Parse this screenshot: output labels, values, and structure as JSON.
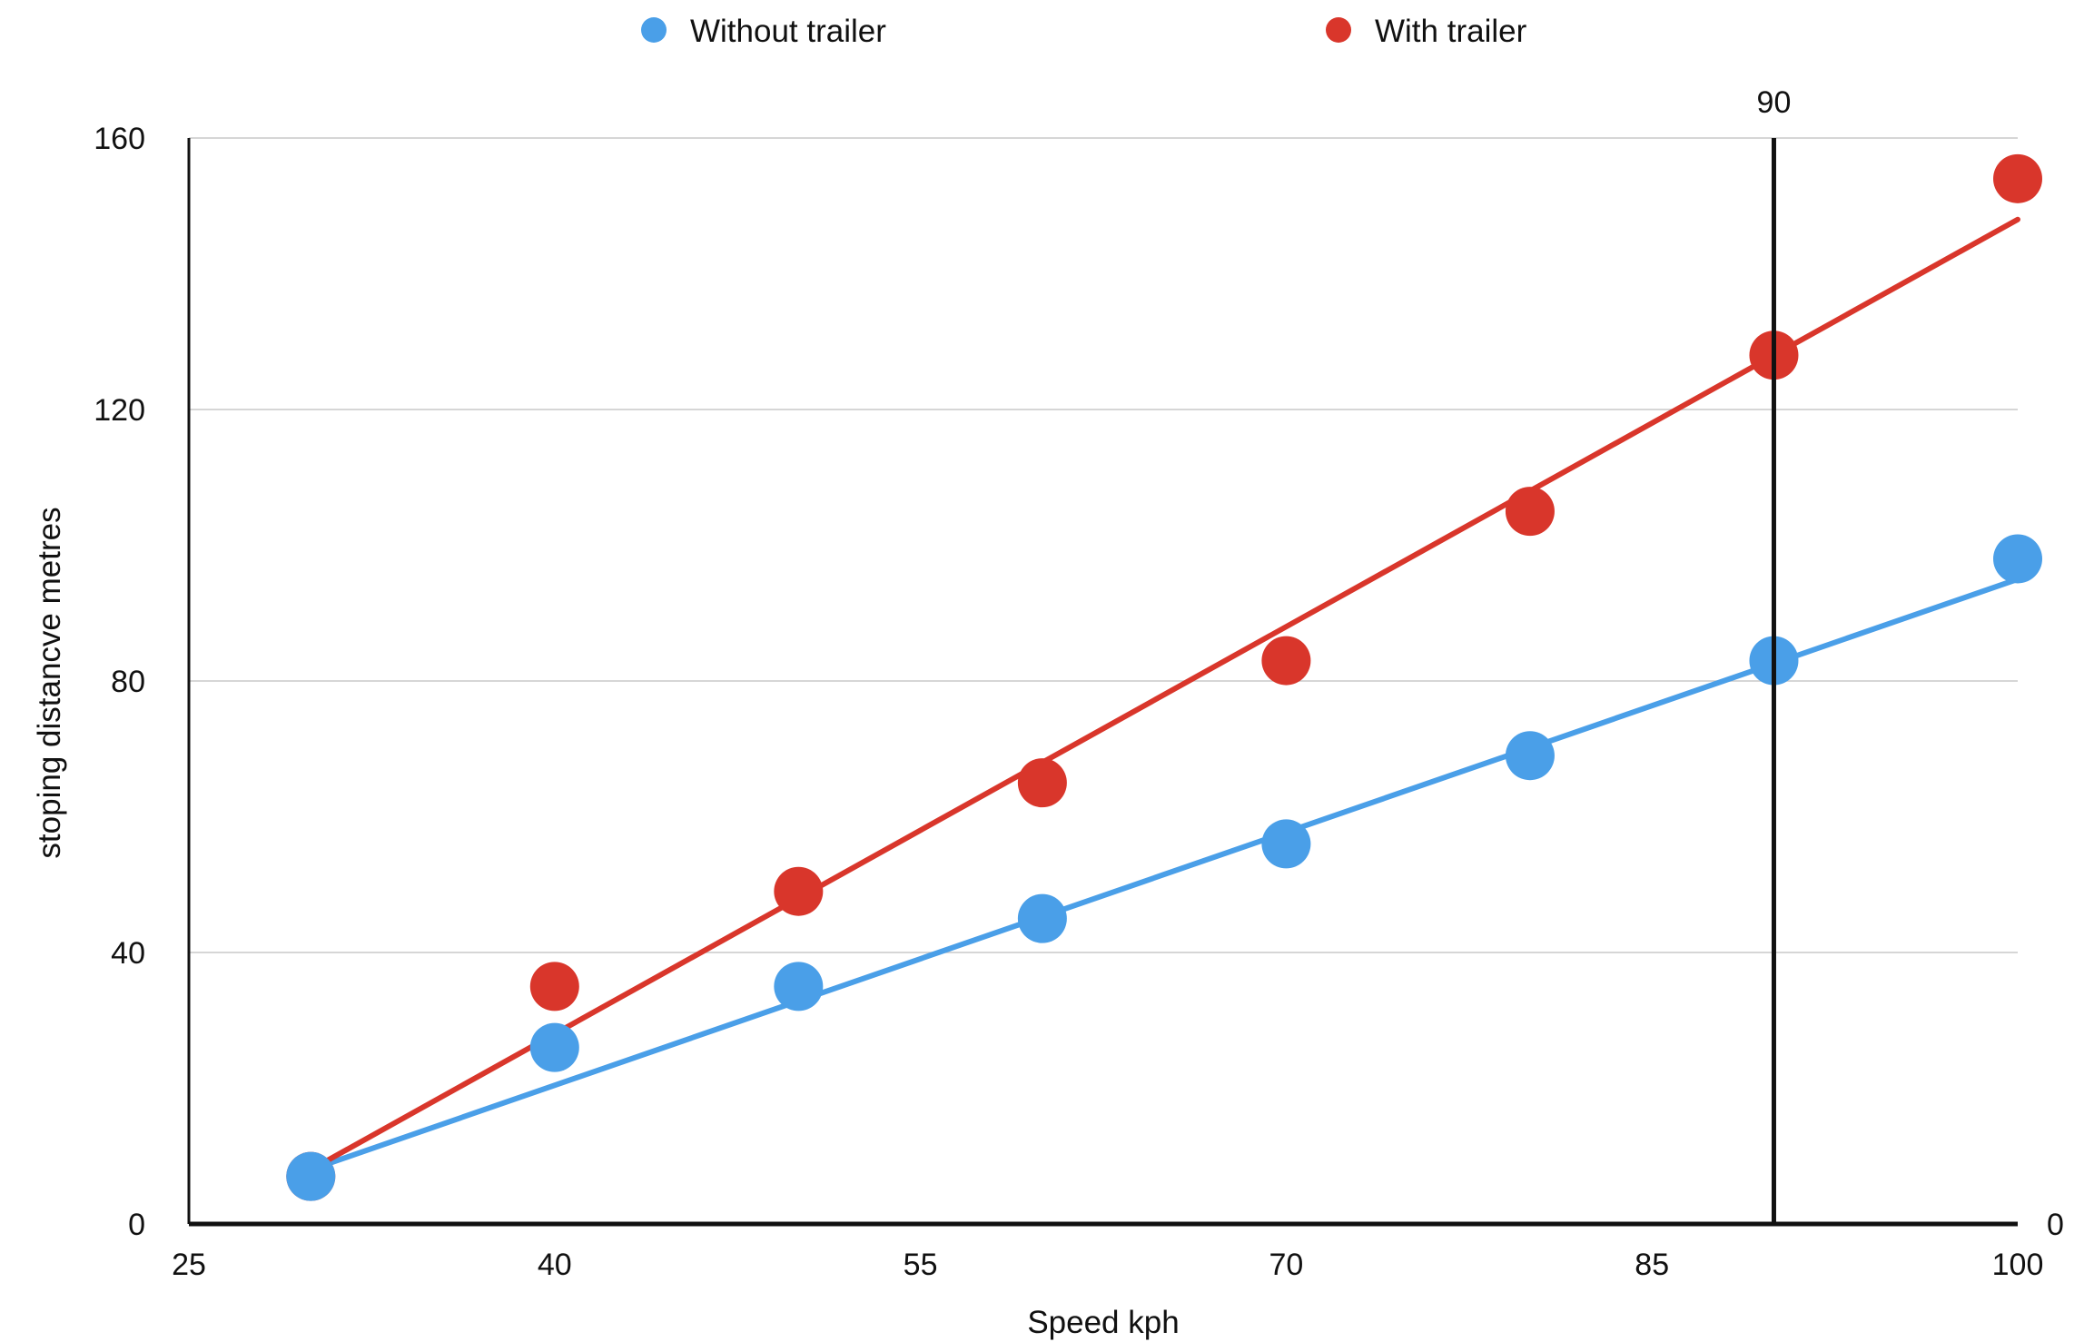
{
  "chart_data": {
    "type": "scatter",
    "title": "",
    "xlabel": "Speed kph",
    "ylabel": "stoping distancve metres",
    "xlim": [
      25,
      100
    ],
    "ylim": [
      0,
      160
    ],
    "x_ticks": [
      "25",
      "40",
      "55",
      "70",
      "85",
      "100"
    ],
    "y_ticks": [
      "0",
      "40",
      "80",
      "120",
      "160"
    ],
    "secondary_y_tick": "0",
    "grid": "horizontal",
    "legend_position": "top",
    "reference_line": {
      "x": 90,
      "label": "90"
    },
    "series": [
      {
        "name": "Without trailer",
        "color": "#4a9fe8",
        "trendline": [
          [
            30,
            8
          ],
          [
            100,
            95
          ]
        ],
        "points": [
          [
            30,
            7
          ],
          [
            40,
            26
          ],
          [
            50,
            35
          ],
          [
            60,
            45
          ],
          [
            70,
            56
          ],
          [
            80,
            69
          ],
          [
            90,
            83
          ],
          [
            100,
            98
          ]
        ]
      },
      {
        "name": "With trailer",
        "color": "#d9362b",
        "trendline": [
          [
            30,
            8
          ],
          [
            100,
            148
          ]
        ],
        "points": [
          [
            30,
            7
          ],
          [
            40,
            35
          ],
          [
            50,
            49
          ],
          [
            60,
            65
          ],
          [
            70,
            83
          ],
          [
            80,
            105
          ],
          [
            90,
            128
          ],
          [
            100,
            154
          ]
        ]
      }
    ]
  }
}
